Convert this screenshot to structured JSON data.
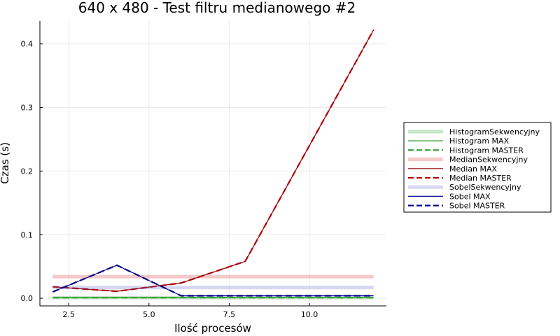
{
  "chart_data": {
    "type": "line",
    "title": "640 x 480 - Test filtru medianowego #2",
    "xlabel": "Ilość procesów",
    "ylabel": "Czas (s)",
    "xlim": [
      1.6,
      12.4
    ],
    "ylim": [
      -0.012,
      0.436
    ],
    "xticks": [
      2.5,
      5.0,
      7.5,
      10.0
    ],
    "xtick_labels": [
      "2.5",
      "5.0",
      "7.5",
      "10.0"
    ],
    "yticks": [
      0.0,
      0.1,
      0.2,
      0.3,
      0.4
    ],
    "ytick_labels": [
      "0.0",
      "0.1",
      "0.2",
      "0.3",
      "0.4"
    ],
    "grid": true,
    "legend_position": "outer-right",
    "series": [
      {
        "name": "HistogramSekwencyjny",
        "x": [
          2,
          12
        ],
        "y": [
          0.001,
          0.001
        ],
        "color": "#2ca02c",
        "style": "thick-faded"
      },
      {
        "name": "Histogram MAX",
        "x": [
          2,
          4,
          6,
          8,
          12
        ],
        "y": [
          0.001,
          0.001,
          0.001,
          0.001,
          0.001
        ],
        "color": "#008000",
        "style": "solid"
      },
      {
        "name": "Histogram MASTER",
        "x": [
          2,
          4,
          6,
          8,
          12
        ],
        "y": [
          0.001,
          0.001,
          0.001,
          0.001,
          0.001
        ],
        "color": "#2ca02c",
        "style": "dashed"
      },
      {
        "name": "MedianSekwencyjny",
        "x": [
          2,
          12
        ],
        "y": [
          0.034,
          0.034
        ],
        "color": "#d62728",
        "style": "thick-faded"
      },
      {
        "name": "Median MAX",
        "x": [
          2,
          4,
          6,
          8,
          12
        ],
        "y": [
          0.018,
          0.011,
          0.024,
          0.058,
          0.422
        ],
        "color": "#8b0000",
        "style": "solid"
      },
      {
        "name": "Median MASTER",
        "x": [
          2,
          4,
          6,
          8,
          12
        ],
        "y": [
          0.018,
          0.011,
          0.024,
          0.058,
          0.422
        ],
        "color": "#b20000",
        "style": "dashed"
      },
      {
        "name": "SobelSekwencyjny",
        "x": [
          2,
          12
        ],
        "y": [
          0.017,
          0.017
        ],
        "color": "#6060d0",
        "style": "thick-faded"
      },
      {
        "name": "Sobel MAX",
        "x": [
          2,
          4,
          6,
          8,
          12
        ],
        "y": [
          0.01,
          0.052,
          0.004,
          0.004,
          0.004
        ],
        "color": "#00008b",
        "style": "solid"
      },
      {
        "name": "Sobel MASTER",
        "x": [
          2,
          4,
          6,
          8,
          12
        ],
        "y": [
          0.01,
          0.052,
          0.004,
          0.004,
          0.004
        ],
        "color": "#00008b",
        "style": "dashed"
      }
    ]
  }
}
